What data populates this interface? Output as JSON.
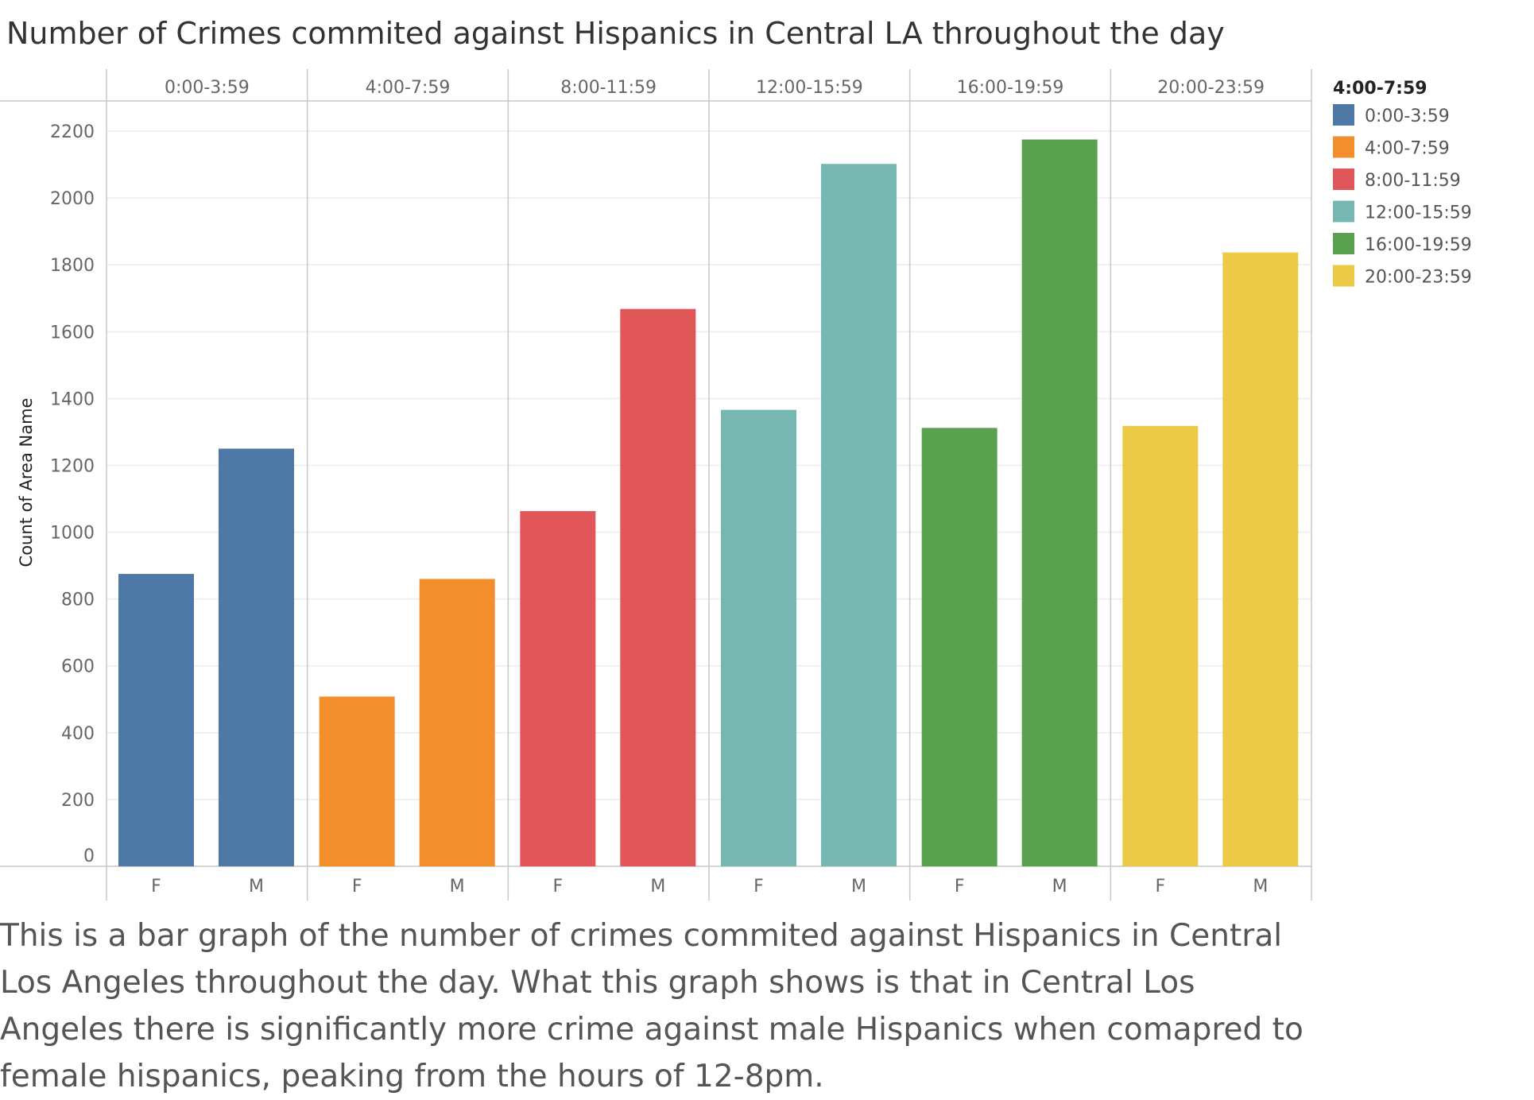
{
  "chart_data": {
    "type": "bar",
    "title": "Number of Crimes commited against Hispanics in Central LA throughout the day",
    "ylabel": "Count of Area Name",
    "xlabel": "",
    "ylim": [
      0,
      2200
    ],
    "y_ticks": [
      0,
      200,
      400,
      600,
      800,
      1000,
      1200,
      1400,
      1600,
      1800,
      2000,
      2200
    ],
    "panels": [
      "0:00-3:59",
      "4:00-7:59",
      "8:00-11:59",
      "12:00-15:59",
      "16:00-19:59",
      "20:00-23:59"
    ],
    "categories": [
      "F",
      "M"
    ],
    "series": [
      {
        "name": "0:00-3:59",
        "color": "#4e79a7",
        "values": [
          875,
          1250
        ]
      },
      {
        "name": "4:00-7:59",
        "color": "#f28e2b",
        "values": [
          508,
          860
        ]
      },
      {
        "name": "8:00-11:59",
        "color": "#e15759",
        "values": [
          1063,
          1668
        ]
      },
      {
        "name": "12:00-15:59",
        "color": "#76b7b2",
        "values": [
          1366,
          2102
        ]
      },
      {
        "name": "16:00-19:59",
        "color": "#59a14f",
        "values": [
          1312,
          2175
        ]
      },
      {
        "name": "20:00-23:59",
        "color": "#edc948",
        "values": [
          1318,
          1837
        ]
      }
    ],
    "legend": {
      "title": "4:00-7:59",
      "placement": "right"
    },
    "grid": true
  },
  "caption": "This is a bar graph of the number of crimes commited against Hispanics in Central Los Angeles throughout the day. What this graph shows is that in Central Los Angeles there is significantly more crime against male Hispanics when comapred to female hispanics, peaking from the hours of 12-8pm."
}
